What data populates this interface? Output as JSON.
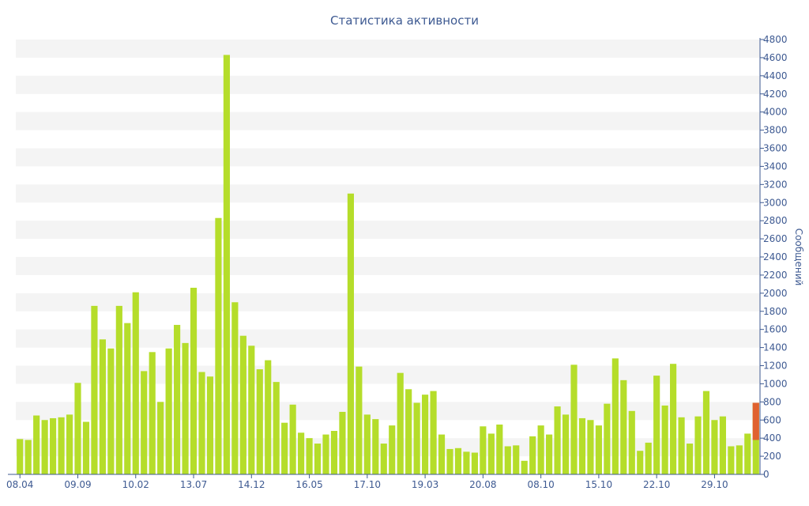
{
  "colors": {
    "bar": "#b5dd2a",
    "highlight": "#e0612f",
    "axis": "#3e5a92",
    "band": "#f4f4f4"
  },
  "chart_data": {
    "type": "bar",
    "title": "Статистика активности",
    "ylabel": "Сообщений",
    "y_axis_position": "right",
    "ylim": [
      0,
      4800
    ],
    "y_ticks": [
      0,
      200,
      400,
      600,
      800,
      1000,
      1200,
      1400,
      1600,
      1800,
      2000,
      2200,
      2400,
      2600,
      2800,
      3000,
      3200,
      3400,
      3600,
      3800,
      4000,
      4200,
      4400,
      4600,
      4800
    ],
    "x_tick_labels": [
      {
        "label": "08.04",
        "bar_index": 0
      },
      {
        "label": "09.09",
        "bar_index": 7
      },
      {
        "label": "10.02",
        "bar_index": 14
      },
      {
        "label": "13.07",
        "bar_index": 21
      },
      {
        "label": "14.12",
        "bar_index": 28
      },
      {
        "label": "16.05",
        "bar_index": 35
      },
      {
        "label": "17.10",
        "bar_index": 42
      },
      {
        "label": "19.03",
        "bar_index": 49
      },
      {
        "label": "20.08",
        "bar_index": 56
      },
      {
        "label": "08.10",
        "bar_index": 63
      },
      {
        "label": "15.10",
        "bar_index": 70
      },
      {
        "label": "22.10",
        "bar_index": 77
      },
      {
        "label": "29.10",
        "bar_index": 84
      }
    ],
    "grid": "alternating-horizontal-bands",
    "values": [
      390,
      380,
      650,
      600,
      620,
      630,
      660,
      1010,
      580,
      1860,
      1490,
      1390,
      1860,
      1670,
      2010,
      1140,
      1350,
      800,
      1390,
      1650,
      1450,
      2060,
      1130,
      1080,
      2830,
      4630,
      1900,
      1530,
      1420,
      1160,
      1260,
      1020,
      570,
      770,
      460,
      400,
      340,
      440,
      480,
      690,
      3100,
      1190,
      660,
      610,
      340,
      540,
      1120,
      940,
      790,
      880,
      920,
      440,
      280,
      290,
      250,
      240,
      530,
      450,
      550,
      310,
      320,
      150,
      420,
      540,
      440,
      750,
      660,
      1210,
      620,
      600,
      540,
      780,
      1280,
      1040,
      700,
      260,
      350,
      1090,
      760,
      1220,
      630,
      340,
      640,
      920,
      600,
      640,
      310,
      320,
      450,
      790
    ],
    "highlight": {
      "index": 89,
      "base": 380,
      "top": 790
    }
  }
}
